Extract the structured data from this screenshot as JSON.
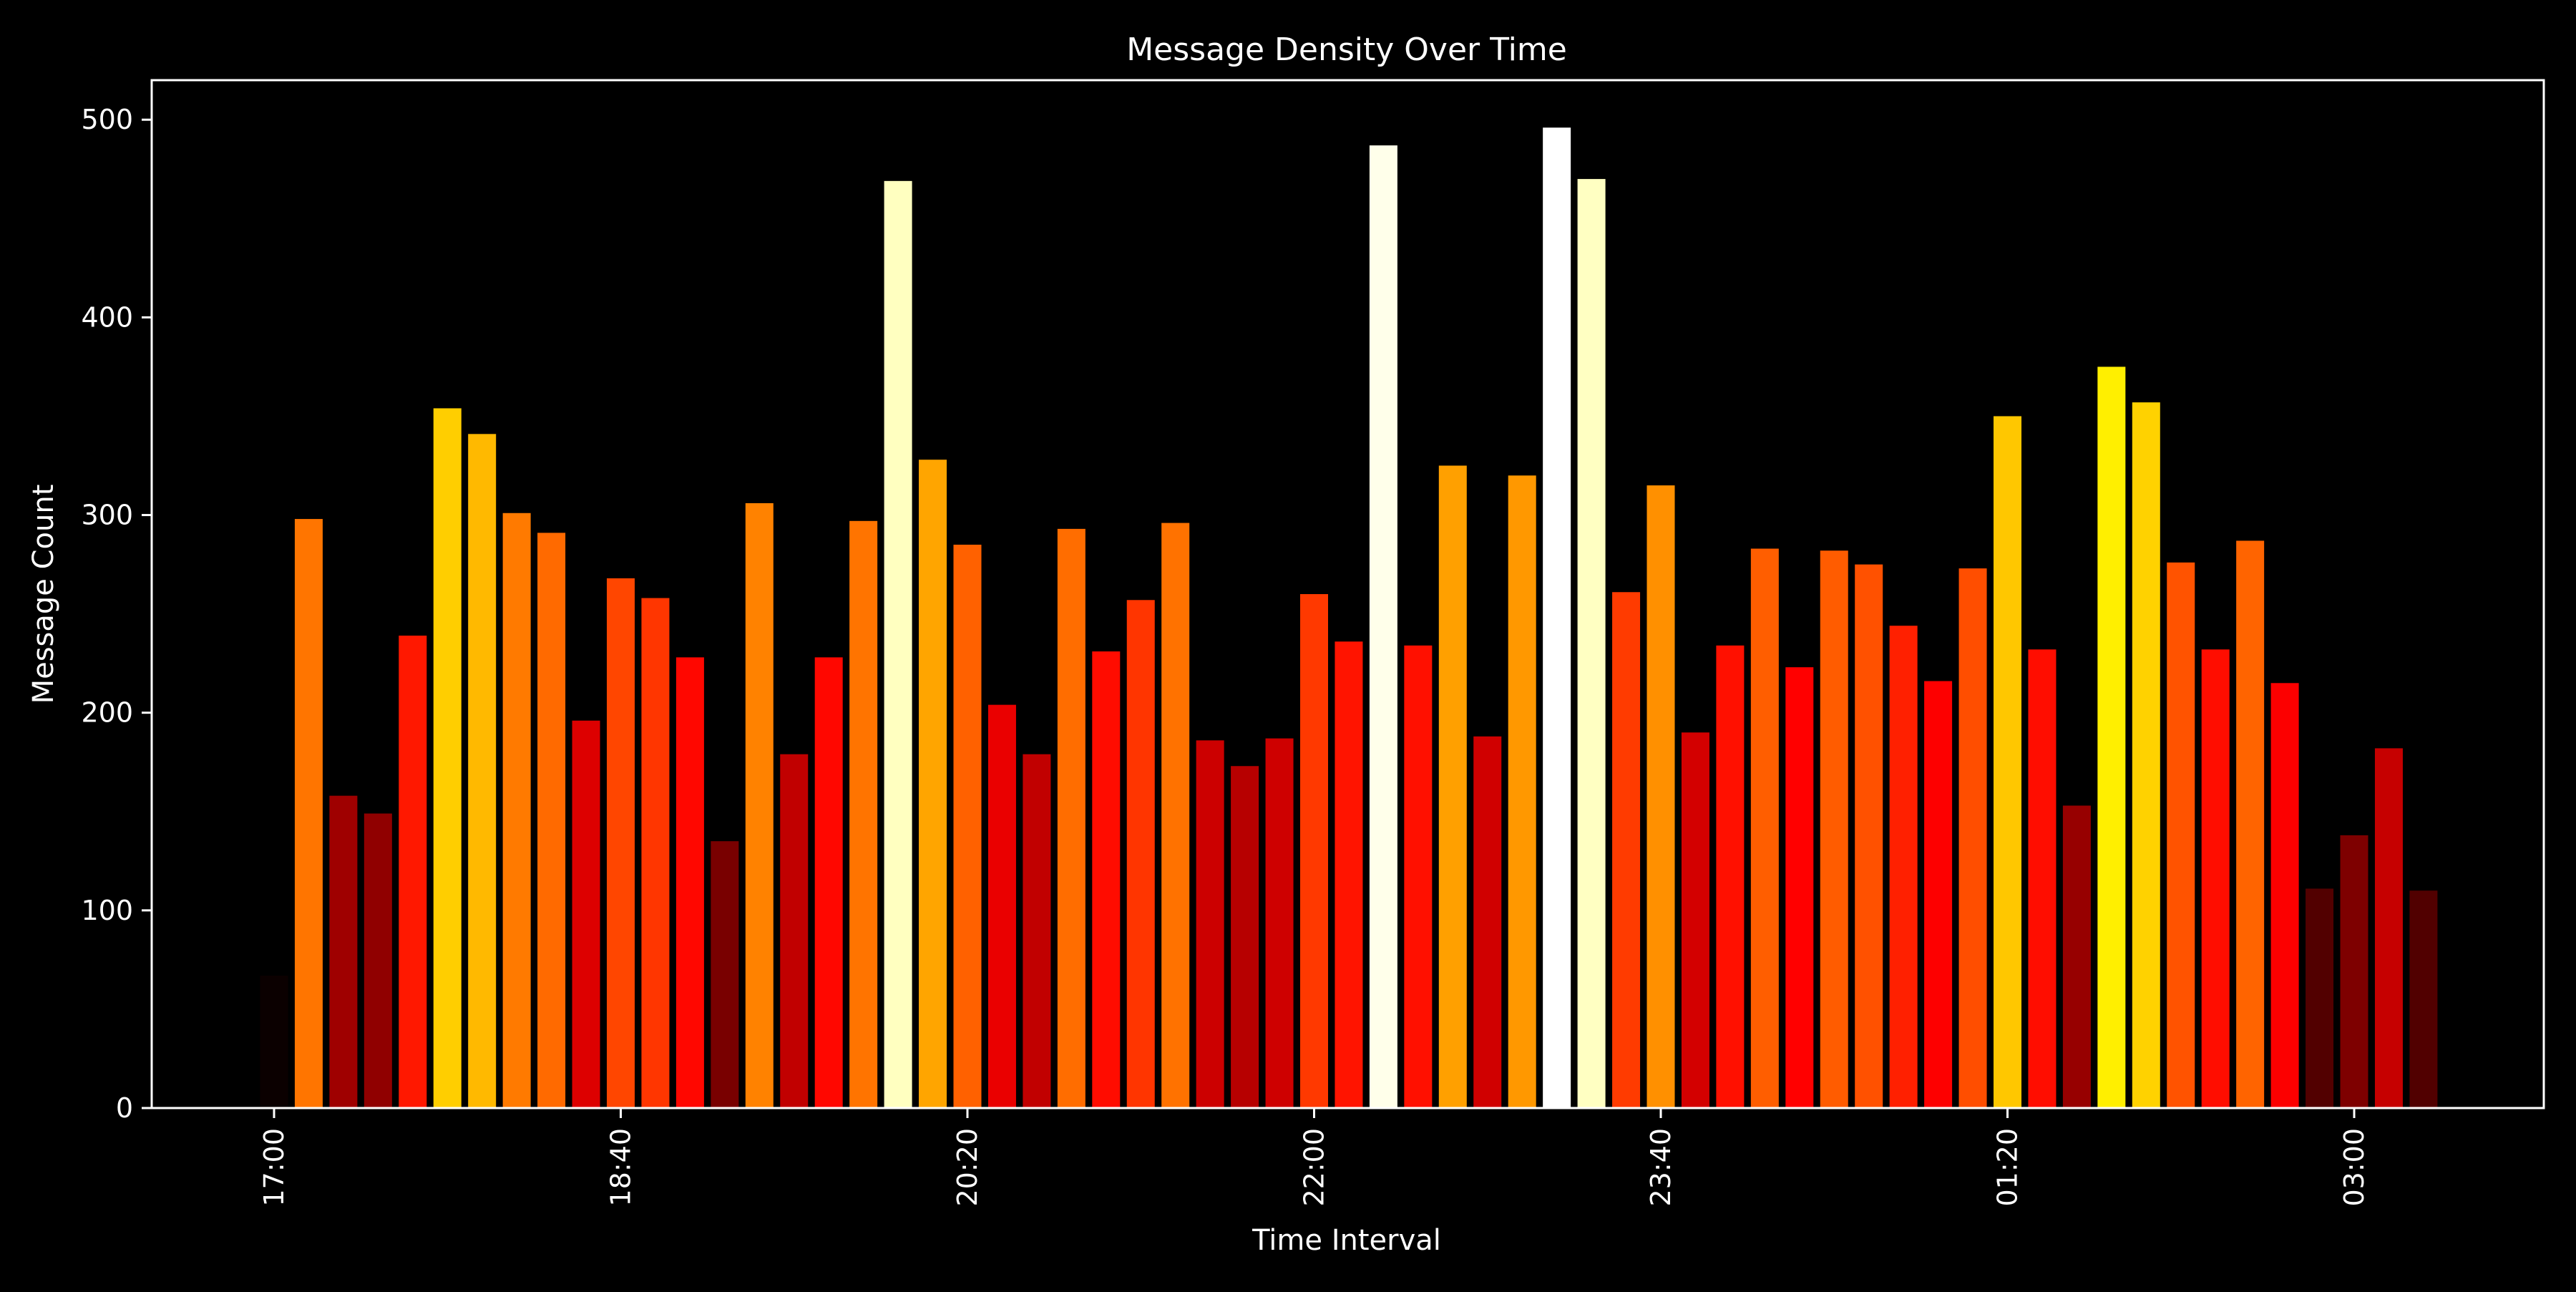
{
  "chart_data": {
    "type": "bar",
    "title": "Message Density Over Time",
    "xlabel": "Time Interval",
    "ylabel": "Message Count",
    "ylim": [
      0,
      520
    ],
    "yticks": [
      0,
      100,
      200,
      300,
      400,
      500
    ],
    "x_start": "17:00",
    "bin_minutes": 10,
    "xticks": [
      "17:00",
      "18:40",
      "20:20",
      "22:00",
      "23:40",
      "01:20",
      "03:00"
    ],
    "values": [
      67,
      298,
      158,
      149,
      239,
      354,
      341,
      301,
      291,
      196,
      268,
      258,
      228,
      135,
      306,
      179,
      228,
      297,
      469,
      328,
      285,
      204,
      179,
      293,
      231,
      257,
      296,
      186,
      173,
      187,
      260,
      236,
      487,
      234,
      325,
      188,
      320,
      496,
      470,
      261,
      315,
      190,
      234,
      283,
      223,
      282,
      275,
      244,
      216,
      273,
      350,
      232,
      153,
      375,
      357,
      276,
      232,
      287,
      215,
      111,
      138,
      182,
      110
    ],
    "grid": false,
    "legend": "none",
    "colormap": "hot",
    "colors": {
      "background": "#000000",
      "axes": "#ffffff",
      "text": "#ffffff"
    }
  }
}
